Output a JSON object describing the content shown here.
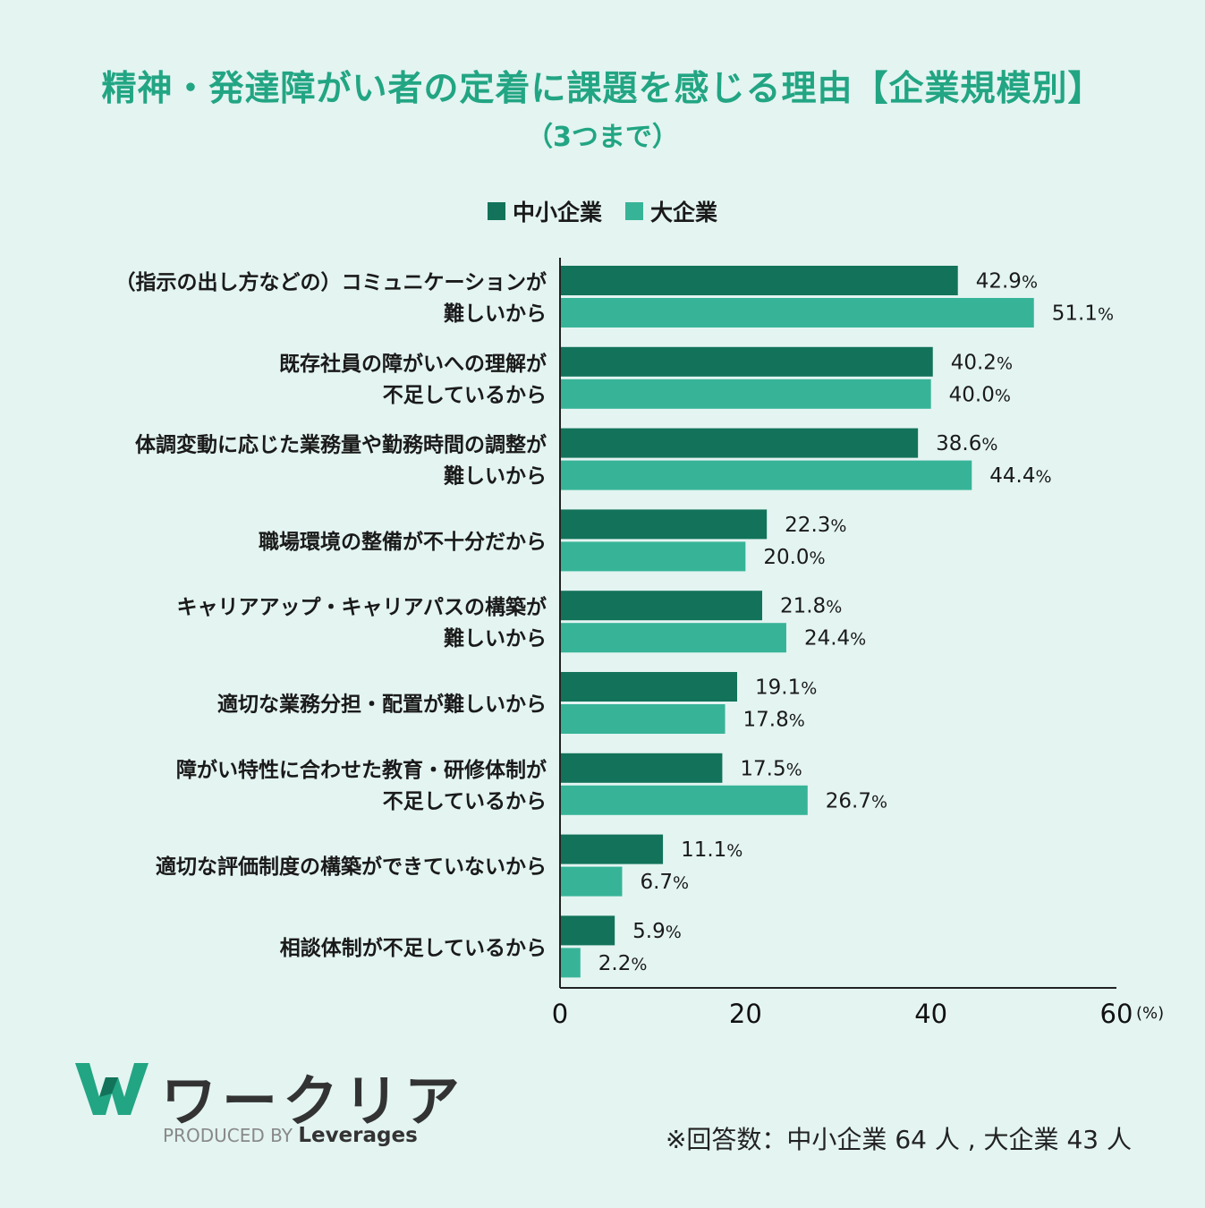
{
  "chart_data": {
    "type": "bar",
    "orientation": "horizontal",
    "title": "精神・発達障がい者の定着に課題を感じる理由【企業規模別】",
    "subtitle": "（3つまで）",
    "categories": [
      [
        "（指示の出し方などの）コミュニケーションが",
        "難しいから"
      ],
      [
        "既存社員の障がいへの理解が",
        "不足しているから"
      ],
      [
        "体調変動に応じた業務量や勤務時間の調整が",
        "難しいから"
      ],
      [
        "職場環境の整備が不十分だから"
      ],
      [
        "キャリアアップ・キャリアパスの構築が",
        "難しいから"
      ],
      [
        "適切な業務分担・配置が難しいから"
      ],
      [
        "障がい特性に合わせた教育・研修体制が",
        "不足しているから"
      ],
      [
        "適切な評価制度の構築ができていないから"
      ],
      [
        "相談体制が不足しているから"
      ]
    ],
    "series": [
      {
        "name": "中小企業",
        "color": "#12735a",
        "values": [
          42.9,
          40.2,
          38.6,
          22.3,
          21.8,
          19.1,
          17.5,
          11.1,
          5.9
        ],
        "labels": [
          "42.9",
          "40.2",
          "38.6",
          "22.3",
          "21.8",
          "19.1",
          "17.5",
          "11.1",
          "5.9"
        ]
      },
      {
        "name": "大企業",
        "color": "#37b498",
        "values": [
          51.1,
          40.0,
          44.4,
          20.0,
          24.4,
          17.8,
          26.7,
          6.7,
          2.2
        ],
        "labels": [
          "51.1",
          "40.0",
          "44.4",
          "20.0",
          "24.4",
          "17.8",
          "26.7",
          "6.7",
          "2.2"
        ]
      }
    ],
    "percent_sign": "%",
    "xlim": [
      0,
      60
    ],
    "xticks": [
      "0",
      "20",
      "40",
      "60"
    ],
    "xunit": "(%)",
    "legend_position": "top-center",
    "grid": false
  },
  "brand": {
    "name": "ワークリア",
    "produced_by": "PRODUCED BY",
    "company": "Leverages",
    "color": "#22a583"
  },
  "note": "※回答数：中小企業 64 人 , 大企業 43 人"
}
